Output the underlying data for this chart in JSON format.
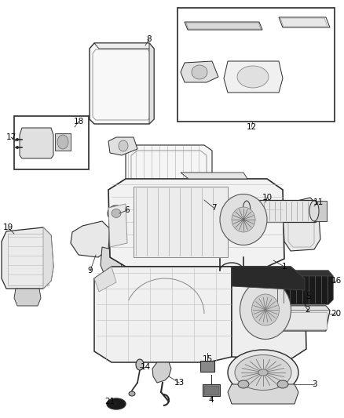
{
  "bg_color": "#ffffff",
  "line_color": "#2a2a2a",
  "fig_width": 4.38,
  "fig_height": 5.33,
  "dpi": 100,
  "label_fontsize": 7.5,
  "label_color": "#000000"
}
